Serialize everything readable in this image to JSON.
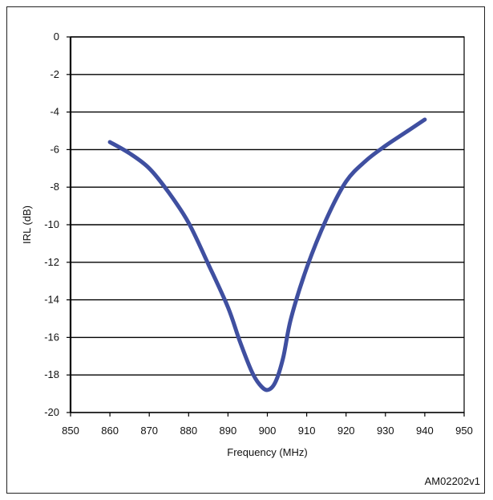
{
  "chart_data": {
    "type": "line",
    "xlabel": "Frequency (MHz)",
    "ylabel": "IRL (dB)",
    "xlim": [
      850,
      950
    ],
    "ylim": [
      -20,
      0
    ],
    "xticks": [
      850,
      860,
      870,
      880,
      890,
      900,
      910,
      920,
      930,
      940,
      950
    ],
    "yticks": [
      0,
      -2,
      -4,
      -6,
      -8,
      -10,
      -12,
      -14,
      -16,
      -18,
      -20
    ],
    "grid": "horizontal",
    "series": [
      {
        "color": "#3f4fa0",
        "x": [
          860,
          865,
          870,
          875,
          880,
          885,
          890,
          893,
          896,
          898,
          900,
          902,
          904,
          906,
          910,
          915,
          920,
          925,
          930,
          935,
          940
        ],
        "y": [
          -5.6,
          -6.2,
          -7.0,
          -8.3,
          -9.9,
          -12.1,
          -14.4,
          -16.2,
          -17.8,
          -18.5,
          -18.8,
          -18.4,
          -17.1,
          -15.0,
          -12.3,
          -9.7,
          -7.7,
          -6.6,
          -5.8,
          -5.1,
          -4.4
        ]
      }
    ]
  },
  "figure_id": "AM02202v1"
}
